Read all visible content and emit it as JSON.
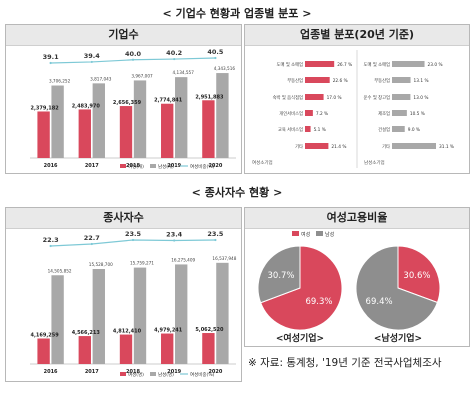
{
  "section1_title": "< 기업수 현황과 업종별 분포 >",
  "section2_title": "< 종사자수 현황 >",
  "source": "※ 자료: 통계청, '19년 기준 전국사업체조사",
  "colors": {
    "female": "#d9485c",
    "male": "#a8a8a8",
    "ratio": "#7ec9d6",
    "pieGray": "#8e8e8e"
  },
  "chart_data": [
    {
      "type": "bar",
      "title": "기업수",
      "categories": [
        "2016",
        "2017",
        "2018",
        "2019",
        "2020"
      ],
      "series": [
        {
          "name": "여성(개)",
          "values": [
            2379182,
            2483970,
            2656359,
            2774841,
            2951883
          ],
          "labels": [
            "2,379,182",
            "2,483,970",
            "2,656,359",
            "2,774,841",
            "2,951,883"
          ]
        },
        {
          "name": "남성(개)",
          "values": [
            3706252,
            3817043,
            3967007,
            4134557,
            4343516
          ],
          "labels": [
            "3,706,252",
            "3,817,043",
            "3,967,007",
            "4,134,557",
            "4,343,516"
          ]
        }
      ],
      "line": {
        "name": "여성비중(%)",
        "values": [
          39.1,
          39.4,
          40.0,
          40.2,
          40.5
        ],
        "labels": [
          "39.1",
          "39.4",
          "40.0",
          "40.2",
          "40.5"
        ]
      },
      "ylim": [
        0,
        4500000
      ]
    },
    {
      "type": "bar",
      "title": "업종별 분포(20년 기준)",
      "panels": [
        {
          "name": "여성소기업",
          "categories": [
            "도매 및 소매업",
            "부동산업",
            "숙박 및 음식점업",
            "개인서비스업",
            "교육 서비스업",
            "기타"
          ],
          "values": [
            26.7,
            22.6,
            17.0,
            7.2,
            5.1,
            21.4
          ],
          "labels": [
            "26.7 %",
            "22.6 %",
            "17.0 %",
            "7.2 %",
            "5.1 %",
            "21.4 %"
          ]
        },
        {
          "name": "남성소기업",
          "categories": [
            "도매 및 소매업",
            "부동산업",
            "운수 및 창고업",
            "제조업",
            "건설업",
            "기타"
          ],
          "values": [
            23.0,
            13.1,
            13.0,
            10.5,
            9.0,
            31.1
          ],
          "labels": [
            "23.0 %",
            "13.1 %",
            "13.0 %",
            "10.5 %",
            "9.0 %",
            "31.1 %"
          ]
        }
      ]
    },
    {
      "type": "bar",
      "title": "종사자수",
      "categories": [
        "2016",
        "2017",
        "2018",
        "2019",
        "2020"
      ],
      "series": [
        {
          "name": "여성(명)",
          "values": [
            4169259,
            4566213,
            4812410,
            4979241,
            5062520
          ],
          "labels": [
            "4,169,259",
            "4,566,213",
            "4,812,410",
            "4,979,241",
            "5,062,520"
          ]
        },
        {
          "name": "남성(명)",
          "values": [
            14505852,
            15528700,
            15759271,
            16275409,
            16537948
          ],
          "labels": [
            "14,505,852",
            "15,528,700",
            "15,759,271",
            "16,275,409",
            "16,537,948"
          ]
        }
      ],
      "line": {
        "name": "여성비중(%)",
        "values": [
          22.3,
          22.7,
          23.5,
          23.4,
          23.5
        ],
        "labels": [
          "22.3",
          "22.7",
          "23.5",
          "23.4",
          "23.5"
        ]
      },
      "ylim": [
        0,
        17000000
      ]
    },
    {
      "type": "pie",
      "title": "여성고용비율",
      "legend": [
        "여성",
        "남성"
      ],
      "pies": [
        {
          "name": "<여성기업>",
          "slices": [
            {
              "label": "여성",
              "value": 69.3,
              "text": "69.3%"
            },
            {
              "label": "남성",
              "value": 30.7,
              "text": "30.7%"
            }
          ]
        },
        {
          "name": "<남성기업>",
          "slices": [
            {
              "label": "여성",
              "value": 30.6,
              "text": "30.6%"
            },
            {
              "label": "남성",
              "value": 69.4,
              "text": "69.4%"
            }
          ]
        }
      ]
    }
  ]
}
